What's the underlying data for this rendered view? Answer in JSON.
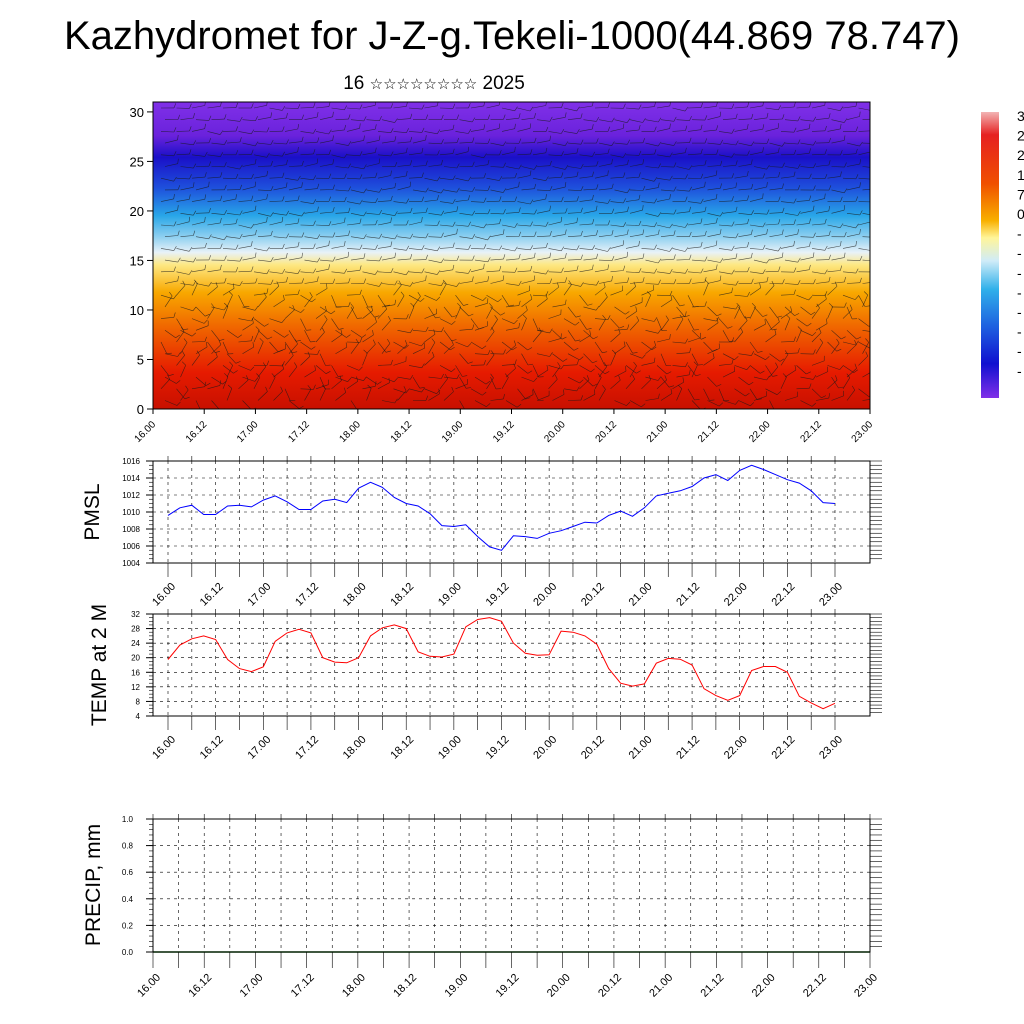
{
  "page": {
    "title": "Kazhydromet for J-Z-g.Tekeli-1000(44.869 78.747)",
    "subtitle_day": "16",
    "subtitle_month": "☆☆☆☆☆☆☆☆",
    "subtitle_year": "2025"
  },
  "colors": {
    "pmsl_line": "#0000ff",
    "temp_line": "#ff0000",
    "precip_line": "#006400",
    "grid": "#000000"
  },
  "chart_data": [
    {
      "type": "heatmap",
      "name": "cross-section",
      "title": "",
      "xlabel": "",
      "ylabel": "",
      "x_tick_labels": [
        "16.00",
        "16.12",
        "17.00",
        "17.12",
        "18.00",
        "18.12",
        "19.00",
        "19.12",
        "20.00",
        "20.12",
        "21.00",
        "21.12",
        "22.00",
        "22.12",
        "23.00"
      ],
      "y_ticks": [
        0,
        5,
        10,
        15,
        20,
        25,
        30
      ],
      "ylim": [
        0,
        31
      ],
      "overlay": "wind barbs",
      "colorbar": {
        "placement": "right",
        "visible_labels": [
          "3",
          "2",
          "2",
          "1",
          "7",
          "0",
          "-",
          "-",
          "-",
          "-",
          "-",
          "-",
          "-",
          "-"
        ]
      }
    },
    {
      "type": "line",
      "name": "pmsl",
      "ylabel": "PMSL",
      "ylim": [
        1004,
        1016
      ],
      "y_ticks": [
        1004,
        1006,
        1008,
        1010,
        1012,
        1014,
        1016
      ],
      "x_tick_labels": [
        "16.00",
        "16.12",
        "17.00",
        "17.12",
        "18.00",
        "18.12",
        "19.00",
        "19.12",
        "20.00",
        "20.12",
        "21.00",
        "21.12",
        "22.00",
        "22.12",
        "23.00"
      ],
      "grid": true,
      "x_hours": [
        0,
        3,
        6,
        9,
        12,
        15,
        18,
        21,
        24,
        27,
        30,
        33,
        36,
        39,
        42,
        45,
        48,
        51,
        54,
        57,
        60,
        63,
        66,
        69,
        72,
        75,
        78,
        81,
        84,
        87,
        90,
        93,
        96,
        99,
        102,
        105,
        108,
        111,
        114,
        117,
        120,
        123,
        126,
        129,
        132,
        135,
        138,
        141,
        144,
        147,
        150,
        153,
        156,
        159,
        162,
        165,
        168
      ],
      "values": [
        1009.6,
        1010.5,
        1010.8,
        1009.7,
        1009.7,
        1010.7,
        1010.8,
        1010.6,
        1011.4,
        1011.9,
        1011.2,
        1010.3,
        1010.3,
        1011.3,
        1011.5,
        1011.1,
        1012.8,
        1013.5,
        1012.9,
        1011.7,
        1011.0,
        1010.7,
        1009.8,
        1008.4,
        1008.3,
        1008.5,
        1007.1,
        1005.9,
        1005.5,
        1007.2,
        1007.1,
        1006.9,
        1007.5,
        1007.8,
        1008.3,
        1008.8,
        1008.7,
        1009.6,
        1010.1,
        1009.5,
        1010.5,
        1011.9,
        1012.2,
        1012.5,
        1013.0,
        1014.0,
        1014.4,
        1013.7,
        1014.9,
        1015.5,
        1015.0,
        1014.4,
        1013.8,
        1013.4,
        1012.5,
        1011.1,
        1011.0
      ]
    },
    {
      "type": "line",
      "name": "temp-2m",
      "ylabel": "TEMP at 2 M",
      "ylim": [
        4,
        32
      ],
      "y_ticks": [
        4,
        8,
        12,
        16,
        20,
        24,
        28,
        32
      ],
      "x_tick_labels": [
        "16.00",
        "16.12",
        "17.00",
        "17.12",
        "18.00",
        "18.12",
        "19.00",
        "19.12",
        "20.00",
        "20.12",
        "21.00",
        "21.12",
        "22.00",
        "22.12",
        "23.00"
      ],
      "grid": true,
      "x_hours": [
        0,
        3,
        6,
        9,
        12,
        15,
        18,
        21,
        24,
        27,
        30,
        33,
        36,
        39,
        42,
        45,
        48,
        51,
        54,
        57,
        60,
        63,
        66,
        69,
        72,
        75,
        78,
        81,
        84,
        87,
        90,
        93,
        96,
        99,
        102,
        105,
        108,
        111,
        114,
        117,
        120,
        123,
        126,
        129,
        132,
        135,
        138,
        141,
        144,
        147,
        150,
        153,
        156,
        159,
        162,
        165,
        168
      ],
      "values": [
        19.5,
        23.5,
        25.2,
        26.0,
        25.0,
        19.5,
        17.0,
        16.2,
        17.5,
        24.5,
        26.8,
        27.8,
        26.8,
        20.0,
        18.8,
        18.6,
        20.0,
        26.0,
        28.2,
        29.0,
        28.0,
        21.6,
        20.4,
        20.2,
        21.0,
        28.5,
        30.5,
        31.0,
        30.0,
        24.0,
        21.2,
        20.7,
        20.8,
        27.3,
        27.0,
        26.0,
        23.7,
        17.0,
        13.0,
        12.2,
        12.8,
        18.5,
        19.8,
        19.6,
        18.0,
        11.5,
        9.6,
        8.3,
        9.6,
        16.5,
        17.6,
        17.6,
        16.0,
        9.4,
        7.6,
        6.0,
        7.5
      ]
    },
    {
      "type": "line",
      "name": "precip",
      "ylabel": "PRECIP, mm",
      "ylim": [
        0.0,
        1.0
      ],
      "y_ticks": [
        0.0,
        0.2,
        0.4,
        0.6,
        0.8,
        1.0
      ],
      "y_tick_labels": [
        "0.0",
        "0.2",
        "0.4",
        "0.6",
        "0.8",
        "1.0"
      ],
      "x_tick_labels": [
        "16.00",
        "16.12",
        "17.00",
        "17.12",
        "18.00",
        "18.12",
        "19.00",
        "19.12",
        "20.00",
        "20.12",
        "21.00",
        "21.12",
        "22.00",
        "22.12",
        "23.00"
      ],
      "grid": true,
      "values_constant": 0.0
    }
  ]
}
